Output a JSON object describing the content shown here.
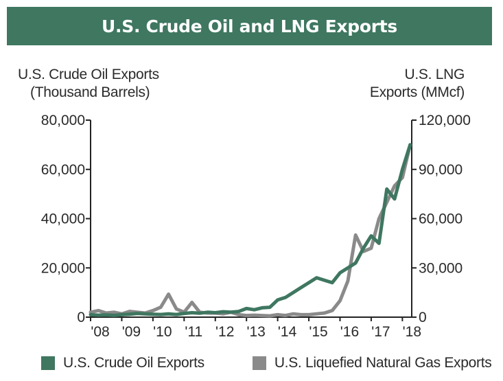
{
  "header": {
    "title": "U.S. Crude Oil and LNG Exports"
  },
  "colors": {
    "banner": "#3f7761",
    "crude": "#3f7761",
    "lng": "#8a8a8a",
    "axis": "#222222"
  },
  "chart_data": {
    "type": "line",
    "title": "U.S. Crude Oil and LNG Exports",
    "ylabel_left": [
      "U.S. Crude Oil Exports",
      "(Thousand Barrels)"
    ],
    "ylabel_right": [
      "U.S. LNG",
      "Exports (MMcf)"
    ],
    "xlabel": "",
    "ylim_left": [
      0,
      80000
    ],
    "ylim_right": [
      0,
      120000
    ],
    "yticks_left": [
      "0",
      "20,000",
      "40,000",
      "60,000",
      "80,000"
    ],
    "yticks_right": [
      "0",
      "30,000",
      "60,000",
      "90,000",
      "120,000"
    ],
    "xticks": [
      "'08",
      "'09",
      "'10",
      "'11",
      "'12",
      "'13",
      "'14",
      "'15",
      "'16",
      "'17",
      "'18"
    ],
    "xlim": [
      2008,
      2018.3
    ],
    "grid": false,
    "legend_position": "bottom",
    "series": [
      {
        "name": "U.S. Crude Oil Exports",
        "axis": "left",
        "x": [
          2008.0,
          2008.25,
          2008.5,
          2008.75,
          2009.0,
          2009.25,
          2009.5,
          2009.75,
          2010.0,
          2010.25,
          2010.5,
          2010.75,
          2011.0,
          2011.25,
          2011.5,
          2011.75,
          2012.0,
          2012.25,
          2012.5,
          2012.75,
          2013.0,
          2013.25,
          2013.5,
          2013.75,
          2014.0,
          2014.25,
          2014.5,
          2014.75,
          2015.0,
          2015.25,
          2015.5,
          2015.75,
          2016.0,
          2016.25,
          2016.5,
          2016.75,
          2017.0,
          2017.25,
          2017.5,
          2017.75,
          2018.0,
          2018.25
        ],
        "values": [
          1000,
          800,
          900,
          700,
          1000,
          1200,
          1500,
          1300,
          1200,
          1100,
          1300,
          1100,
          1500,
          1800,
          1600,
          2000,
          1800,
          2200,
          2000,
          2300,
          3500,
          3000,
          3800,
          4000,
          7000,
          8000,
          10000,
          12000,
          14000,
          16000,
          15000,
          14000,
          18000,
          20000,
          22000,
          28000,
          33000,
          30000,
          52000,
          48000,
          60000,
          70000
        ]
      },
      {
        "name": "U.S. Liquefied Natural Gas Exports",
        "axis": "right",
        "x": [
          2008.0,
          2008.25,
          2008.5,
          2008.75,
          2009.0,
          2009.25,
          2009.5,
          2009.75,
          2010.0,
          2010.25,
          2010.5,
          2010.75,
          2011.0,
          2011.25,
          2011.5,
          2011.75,
          2012.0,
          2012.25,
          2012.5,
          2012.75,
          2013.0,
          2013.25,
          2013.5,
          2013.75,
          2014.0,
          2014.25,
          2014.5,
          2014.75,
          2015.0,
          2015.25,
          2015.5,
          2015.75,
          2016.0,
          2016.25,
          2016.5,
          2016.75,
          2017.0,
          2017.25,
          2017.5,
          2017.75,
          2018.0,
          2018.25
        ],
        "values": [
          3000,
          4000,
          2500,
          3000,
          2000,
          3500,
          3000,
          2500,
          4000,
          6000,
          14000,
          5000,
          3000,
          9000,
          3000,
          2500,
          2500,
          2000,
          3000,
          1500,
          1000,
          1200,
          1000,
          800,
          1500,
          1000,
          2000,
          1500,
          1500,
          2000,
          2500,
          4000,
          10000,
          22000,
          50000,
          40000,
          42000,
          60000,
          70000,
          80000,
          85000,
          105000
        ]
      }
    ]
  }
}
